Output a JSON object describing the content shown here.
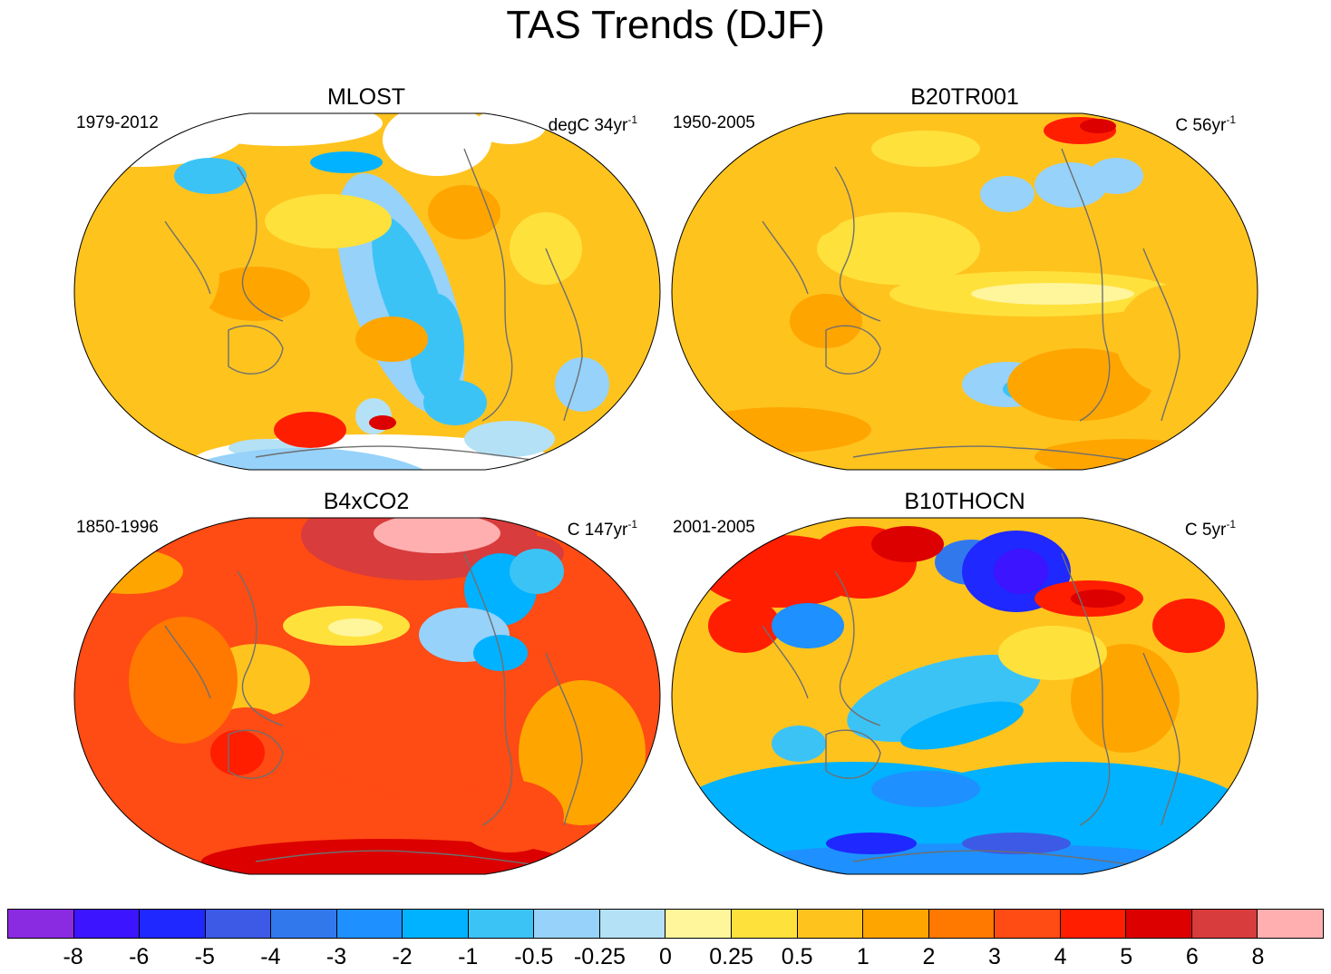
{
  "title": "TAS Trends (DJF)",
  "panels": [
    {
      "name": "MLOST",
      "period": "1979-2012",
      "units_base": "degC 34yr",
      "units_exp": "-1",
      "pattern": "mlost",
      "field_description": "Mostly yellow-orange warming with a cool blue tongue in the eastern Pacific and cool Southern Ocean; white missing-data regions near poles"
    },
    {
      "name": "B20TR001",
      "period": "1950-2005",
      "units_base": "C 56yr",
      "units_exp": "-1",
      "pattern": "b20",
      "field_description": "Widespread orange warming with light-yellow equatorial Pacific and scattered blue patches"
    },
    {
      "name": "B4xCO2",
      "period": "1850-1996",
      "units_base": "C 147yr",
      "units_exp": "-1",
      "pattern": "b4x",
      "field_description": "Strong red-orange warming everywhere, pink in the Arctic, blue cooling in the North Atlantic"
    },
    {
      "name": "B10THOCN",
      "period": "2001-2005",
      "units_base": "C 5yr",
      "units_exp": "-1",
      "pattern": "b10",
      "field_description": "Mixed strong red warming over northern continents, deep blue over North America, blue Southern Ocean"
    }
  ],
  "colorbar": {
    "colors": [
      "#8a2be2",
      "#3c14ff",
      "#1e28ff",
      "#3c5ae6",
      "#3278ed",
      "#1e90ff",
      "#00b2ff",
      "#3cc3f5",
      "#96d2fa",
      "#b4e1f5",
      "#fff59b",
      "#ffe13c",
      "#ffc31e",
      "#ffa500",
      "#ff7800",
      "#ff4b14",
      "#ff1e00",
      "#dc0000",
      "#d83c3c",
      "#ffafaf"
    ],
    "labels": [
      "-8",
      "-6",
      "-5",
      "-4",
      "-3",
      "-2",
      "-1",
      "-0.5",
      "-0.25",
      "0",
      "0.25",
      "0.5",
      "1",
      "2",
      "3",
      "4",
      "5",
      "6",
      "8"
    ]
  }
}
